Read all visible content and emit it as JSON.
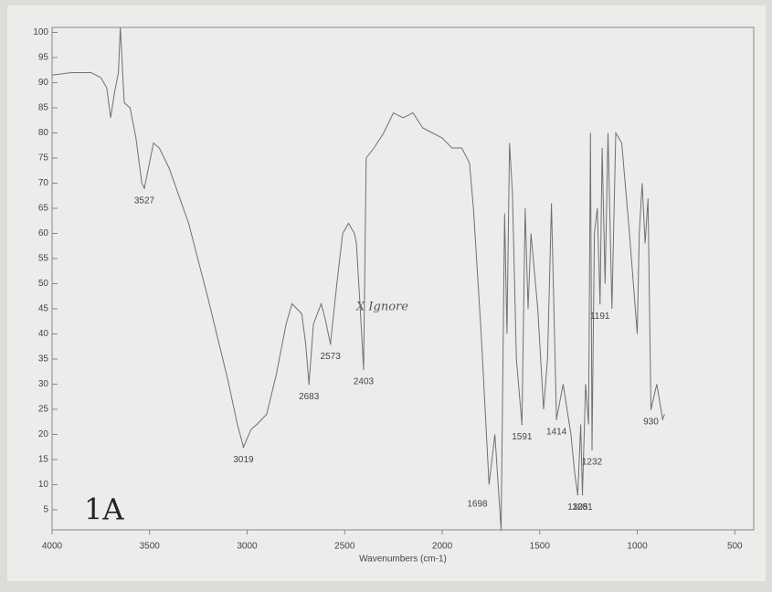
{
  "chart_data": {
    "type": "line",
    "x_label": "Wavenumbers (cm-1)",
    "x": [
      4000,
      3900,
      3800,
      3750,
      3720,
      3700,
      3680,
      3660,
      3650,
      3630,
      3600,
      3570,
      3540,
      3527,
      3480,
      3450,
      3400,
      3300,
      3200,
      3100,
      3050,
      3019,
      2980,
      2950,
      2900,
      2850,
      2800,
      2770,
      2720,
      2700,
      2683,
      2660,
      2620,
      2600,
      2573,
      2540,
      2510,
      2480,
      2450,
      2440,
      2420,
      2403,
      2390,
      2350,
      2300,
      2250,
      2200,
      2150,
      2100,
      2050,
      2000,
      1950,
      1900,
      1860,
      1840,
      1800,
      1760,
      1730,
      1698,
      1680,
      1668,
      1655,
      1640,
      1620,
      1591,
      1575,
      1560,
      1545,
      1510,
      1480,
      1460,
      1440,
      1414,
      1380,
      1340,
      1320,
      1305,
      1290,
      1281,
      1265,
      1250,
      1240,
      1232,
      1220,
      1205,
      1191,
      1180,
      1165,
      1150,
      1130,
      1110,
      1080,
      1040,
      1000,
      990,
      975,
      960,
      945,
      930,
      900,
      870,
      860
    ],
    "values": [
      91.5,
      92,
      92,
      91,
      89,
      83,
      88,
      92,
      101,
      86,
      85,
      79,
      70,
      69,
      78,
      77,
      73,
      62,
      47,
      31,
      22,
      17.5,
      21,
      22,
      24,
      32,
      42,
      46,
      44,
      38,
      30,
      42,
      46,
      43,
      38,
      50,
      60,
      62,
      60,
      58,
      45,
      33,
      75,
      77,
      80,
      84,
      83,
      84,
      81,
      80,
      79,
      77,
      77,
      74,
      65,
      40,
      10,
      20,
      1,
      64,
      40,
      78,
      68,
      35,
      22,
      65,
      45,
      60,
      45,
      25,
      35,
      66,
      23,
      30,
      20,
      12,
      8,
      22,
      8,
      30,
      22,
      80,
      17,
      60,
      65,
      46,
      77,
      50,
      80,
      45,
      80,
      78,
      60,
      40,
      60,
      70,
      58,
      67,
      25,
      30,
      23,
      24
    ],
    "color": "#707070",
    "xlim": [
      4000,
      403
    ],
    "ylim": [
      1,
      101
    ],
    "xticks": [
      4000,
      3500,
      3000,
      2500,
      2000,
      1500,
      1000,
      500
    ],
    "yticks": [
      5,
      10,
      15,
      20,
      25,
      30,
      35,
      40,
      45,
      50,
      55,
      60,
      65,
      70,
      75,
      80,
      85,
      90,
      95,
      100
    ],
    "peaks": [
      {
        "label": "3527",
        "x": 3527,
        "y": 69
      },
      {
        "label": "3019",
        "x": 3019,
        "y": 17.5
      },
      {
        "label": "2683",
        "x": 2683,
        "y": 30
      },
      {
        "label": "2573",
        "x": 2573,
        "y": 38
      },
      {
        "label": "2403",
        "x": 2403,
        "y": 33
      },
      {
        "label": "1698",
        "x": 1698,
        "y": 1
      },
      {
        "label": "1591",
        "x": 1591,
        "y": 22
      },
      {
        "label": "1414",
        "x": 1414,
        "y": 23
      },
      {
        "label": "1305",
        "x": 1305,
        "y": 8
      },
      {
        "label": "1281",
        "x": 1281,
        "y": 8
      },
      {
        "label": "1232",
        "x": 1232,
        "y": 17
      },
      {
        "label": "1191",
        "x": 1191,
        "y": 46
      },
      {
        "label": "930",
        "x": 930,
        "y": 25
      }
    ],
    "notes": {
      "ignore": "X Ignore",
      "sample": "1A"
    }
  }
}
